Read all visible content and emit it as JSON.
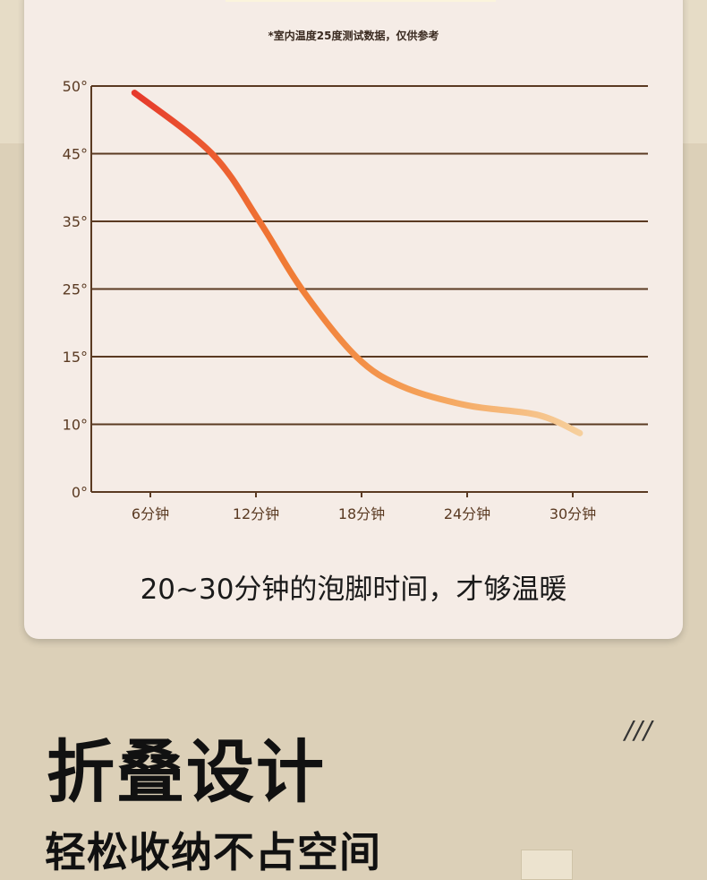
{
  "note": "*室内温度25度测试数据，仅供参考",
  "caption": "20~30分钟的泡脚时间，才够温暖",
  "heading": "折叠设计",
  "subheading": "轻松收纳不占空间",
  "decoration": "///",
  "chart_data": {
    "type": "line",
    "title": "",
    "xlabel": "",
    "ylabel": "",
    "x_ticks": [
      6,
      12,
      18,
      24,
      30
    ],
    "x_tick_labels": [
      "6分钟",
      "12分钟",
      "18分钟",
      "24分钟",
      "30分钟"
    ],
    "y_ticks": [
      0,
      10,
      15,
      25,
      35,
      45,
      50
    ],
    "y_tick_labels": [
      "0°",
      "10°",
      "15°",
      "25°",
      "35°",
      "45°",
      "50°"
    ],
    "y_scale": "categorical-evenly-spaced",
    "grid": "horizontal",
    "series": [
      {
        "x": [
          5.1,
          9.5,
          12.2,
          14.6,
          17.7,
          20.3,
          24,
          28,
          30.4
        ],
        "y": [
          49.5,
          45,
          35,
          25,
          15,
          12.8,
          11.4,
          10.7,
          8.7
        ],
        "colors": [
          "#e63a2c",
          "#f07a34",
          "#f5a35a",
          "#f6cf9c"
        ]
      }
    ],
    "axis_color": "#5a3a22"
  }
}
